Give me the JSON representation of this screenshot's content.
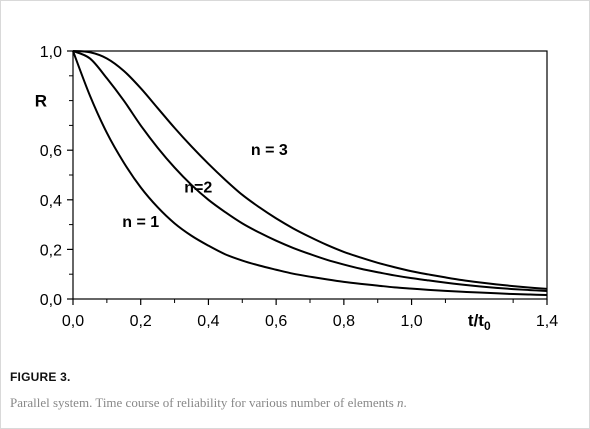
{
  "figure": {
    "label": "FIGURE 3.",
    "caption": "Parallel system. Time course of reliability for various number of elements",
    "caption_variable": "n",
    "caption_end": "."
  },
  "chart_data": {
    "type": "line",
    "xlabel": "t/t",
    "xlabel_subscript": "0",
    "ylabel": "R",
    "xlim": [
      0,
      1.4
    ],
    "ylim": [
      0,
      1.0
    ],
    "grid": false,
    "legend": "none",
    "x_ticks": [
      {
        "value": 0.0,
        "label": "0,0"
      },
      {
        "value": 0.2,
        "label": "0,2"
      },
      {
        "value": 0.4,
        "label": "0,4"
      },
      {
        "value": 0.6,
        "label": "0,6"
      },
      {
        "value": 0.8,
        "label": "0,8"
      },
      {
        "value": 1.0,
        "label": "1,0"
      },
      {
        "value": 1.4,
        "label": "1,4"
      }
    ],
    "x_minor_ticks": [
      0.1,
      0.3,
      0.5,
      0.7,
      0.9,
      1.1,
      1.3
    ],
    "y_ticks": [
      {
        "value": 0.0,
        "label": "0,0"
      },
      {
        "value": 0.2,
        "label": "0,2"
      },
      {
        "value": 0.4,
        "label": "0,4"
      },
      {
        "value": 0.6,
        "label": "0,6"
      },
      {
        "value": 1.0,
        "label": "1,0"
      }
    ],
    "y_minor_ticks": [
      0.1,
      0.3,
      0.5,
      0.7,
      0.8,
      0.9
    ],
    "x": [
      0.0,
      0.05,
      0.1,
      0.15,
      0.2,
      0.25,
      0.3,
      0.35,
      0.4,
      0.45,
      0.5,
      0.55,
      0.6,
      0.65,
      0.7,
      0.75,
      0.8,
      0.85,
      0.9,
      0.95,
      1.0,
      1.05,
      1.1,
      1.15,
      1.2,
      1.25,
      1.3,
      1.35,
      1.4
    ],
    "series": [
      {
        "annotation": "n = 1",
        "annotation_x": 0.2,
        "annotation_y": 0.29,
        "values": [
          1.0,
          0.82,
          0.67,
          0.55,
          0.45,
          0.37,
          0.305,
          0.255,
          0.215,
          0.18,
          0.155,
          0.135,
          0.118,
          0.102,
          0.09,
          0.079,
          0.069,
          0.061,
          0.054,
          0.047,
          0.042,
          0.037,
          0.033,
          0.029,
          0.026,
          0.023,
          0.02,
          0.018,
          0.016
        ]
      },
      {
        "annotation": "n=2",
        "annotation_x": 0.37,
        "annotation_y": 0.43,
        "values": [
          1.0,
          0.97,
          0.89,
          0.8,
          0.7,
          0.61,
          0.53,
          0.46,
          0.4,
          0.35,
          0.305,
          0.268,
          0.235,
          0.206,
          0.181,
          0.158,
          0.139,
          0.122,
          0.108,
          0.095,
          0.084,
          0.075,
          0.066,
          0.058,
          0.051,
          0.045,
          0.04,
          0.036,
          0.032
        ]
      },
      {
        "annotation": "n = 3",
        "annotation_x": 0.58,
        "annotation_y": 0.58,
        "values": [
          1.0,
          0.995,
          0.97,
          0.92,
          0.85,
          0.77,
          0.69,
          0.615,
          0.545,
          0.48,
          0.42,
          0.37,
          0.325,
          0.285,
          0.25,
          0.218,
          0.19,
          0.167,
          0.146,
          0.128,
          0.112,
          0.099,
          0.087,
          0.076,
          0.067,
          0.059,
          0.052,
          0.046,
          0.041
        ]
      }
    ]
  }
}
